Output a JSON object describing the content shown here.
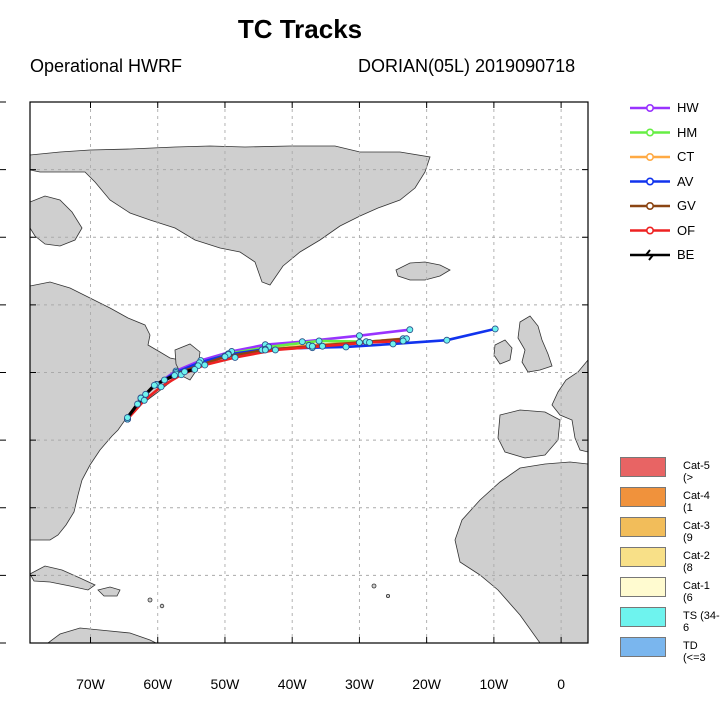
{
  "header": {
    "title": "TC Tracks",
    "model": "Operational HWRF",
    "storm": "DORIAN(05L) 2019090718"
  },
  "axes": {
    "lon_ticks": [
      "70W",
      "60W",
      "50W",
      "40W",
      "30W",
      "20W",
      "10W",
      "0"
    ],
    "lon_values": [
      -70,
      -60,
      -50,
      -40,
      -30,
      -20,
      -10,
      0
    ],
    "lon_range": [
      -79,
      4
    ],
    "lat_range": [
      8,
      80
    ],
    "grid": "dashed"
  },
  "track_legend": [
    {
      "label": "HW",
      "color": "#9933ff"
    },
    {
      "label": "HM",
      "color": "#66ee44"
    },
    {
      "label": "CT",
      "color": "#ffaa44"
    },
    {
      "label": "AV",
      "color": "#1133ee"
    },
    {
      "label": "GV",
      "color": "#8b4513"
    },
    {
      "label": "OF",
      "color": "#ee2222"
    },
    {
      "label": "BE",
      "color": "#000000"
    }
  ],
  "intensity_legend": [
    {
      "label": "Cat-5 (>",
      "color": "#e86464"
    },
    {
      "label": "Cat-4 (1",
      "color": "#f0923c"
    },
    {
      "label": "Cat-3 (9",
      "color": "#f2bd5a"
    },
    {
      "label": "Cat-2 (8",
      "color": "#f8e088"
    },
    {
      "label": "Cat-1 (6",
      "color": "#fffbd0"
    },
    {
      "label": "TS (34-6",
      "color": "#6ef3ee"
    },
    {
      "label": "TD (<=3",
      "color": "#7ab6ee"
    }
  ],
  "chart_data": {
    "type": "map-tracks",
    "tracks": [
      {
        "name": "HW",
        "color": "#9933ff",
        "points": [
          [
            -64.5,
            37.8
          ],
          [
            -62.5,
            40.6
          ],
          [
            -60.2,
            42.4
          ],
          [
            -57.3,
            44.2
          ],
          [
            -53.6,
            45.6
          ],
          [
            -49.0,
            46.8
          ],
          [
            -44.0,
            47.7
          ],
          [
            -38.5,
            48.1
          ],
          [
            -30.0,
            48.9
          ],
          [
            -22.5,
            49.7
          ]
        ]
      },
      {
        "name": "HM",
        "color": "#66ee44",
        "points": [
          [
            -64.5,
            37.8
          ],
          [
            -62.5,
            40.6
          ],
          [
            -60.2,
            42.4
          ],
          [
            -57.3,
            44.0
          ],
          [
            -53.8,
            45.2
          ],
          [
            -49.5,
            46.5
          ],
          [
            -43.5,
            47.4
          ],
          [
            -36.0,
            48.2
          ],
          [
            -29.0,
            48.1
          ],
          [
            -23.5,
            48.4
          ]
        ]
      },
      {
        "name": "CT",
        "color": "#ffaa44",
        "points": [
          [
            -64.5,
            37.8
          ],
          [
            -62.5,
            40.6
          ],
          [
            -60.2,
            42.4
          ],
          [
            -57.3,
            43.9
          ],
          [
            -54.0,
            45.0
          ],
          [
            -50.0,
            46.2
          ],
          [
            -44.5,
            47.0
          ],
          [
            -37.5,
            47.6
          ],
          [
            -30.0,
            48.0
          ],
          [
            -23.5,
            48.5
          ]
        ]
      },
      {
        "name": "AV",
        "color": "#1133ee",
        "points": [
          [
            -64.5,
            37.8
          ],
          [
            -62.5,
            40.6
          ],
          [
            -60.2,
            42.4
          ],
          [
            -57.3,
            44.0
          ],
          [
            -53.8,
            45.3
          ],
          [
            -49.5,
            46.4
          ],
          [
            -44.0,
            47.1
          ],
          [
            -37.0,
            47.3
          ],
          [
            -32.0,
            47.4
          ],
          [
            -25.0,
            47.8
          ],
          [
            -17.0,
            48.3
          ],
          [
            -9.8,
            49.8
          ]
        ]
      },
      {
        "name": "GV",
        "color": "#8b4513",
        "points": [
          [
            -64.5,
            37.8
          ],
          [
            -62.5,
            40.6
          ],
          [
            -60.2,
            42.4
          ],
          [
            -57.3,
            43.8
          ],
          [
            -54.0,
            44.9
          ],
          [
            -50.0,
            46.1
          ],
          [
            -44.0,
            47.0
          ],
          [
            -37.0,
            47.5
          ],
          [
            -30.0,
            48.0
          ],
          [
            -23.0,
            48.5
          ]
        ]
      },
      {
        "name": "OF",
        "color": "#ee2222",
        "points": [
          [
            -64.5,
            37.8
          ],
          [
            -62.0,
            40.3
          ],
          [
            -59.5,
            42.1
          ],
          [
            -56.5,
            43.7
          ],
          [
            -53.0,
            45.0
          ],
          [
            -48.5,
            46.0
          ],
          [
            -42.5,
            47.0
          ],
          [
            -35.5,
            47.5
          ],
          [
            -28.5,
            48.0
          ],
          [
            -23.5,
            48.2
          ]
        ]
      },
      {
        "name": "BE",
        "color": "#000000",
        "points": [
          [
            -64.5,
            38.0
          ],
          [
            -63.0,
            39.8
          ],
          [
            -61.8,
            41.1
          ],
          [
            -60.5,
            42.3
          ],
          [
            -59.0,
            43.0
          ],
          [
            -57.5,
            43.6
          ],
          [
            -56.0,
            44.1
          ],
          [
            -54.5,
            44.4
          ]
        ]
      }
    ]
  }
}
